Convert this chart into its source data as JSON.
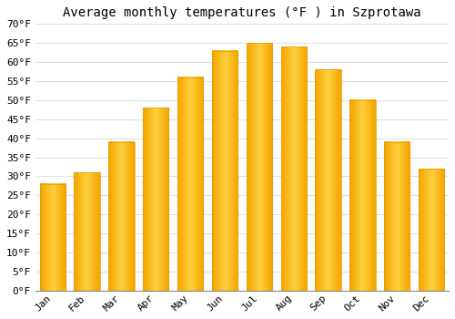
{
  "title": "Average monthly temperatures (°F ) in Szprotawa",
  "months": [
    "Jan",
    "Feb",
    "Mar",
    "Apr",
    "May",
    "Jun",
    "Jul",
    "Aug",
    "Sep",
    "Oct",
    "Nov",
    "Dec"
  ],
  "values": [
    28,
    31,
    39,
    48,
    56,
    63,
    65,
    64,
    58,
    50,
    39,
    32
  ],
  "bar_color_center": "#FFD040",
  "bar_color_edge": "#F5A800",
  "background_color": "#FFFFFF",
  "grid_color": "#E0E0E0",
  "ylim": [
    0,
    70
  ],
  "yticks": [
    0,
    5,
    10,
    15,
    20,
    25,
    30,
    35,
    40,
    45,
    50,
    55,
    60,
    65,
    70
  ],
  "ylabel_suffix": "°F",
  "title_fontsize": 10,
  "tick_fontsize": 8,
  "font_family": "monospace",
  "bar_width": 0.75
}
